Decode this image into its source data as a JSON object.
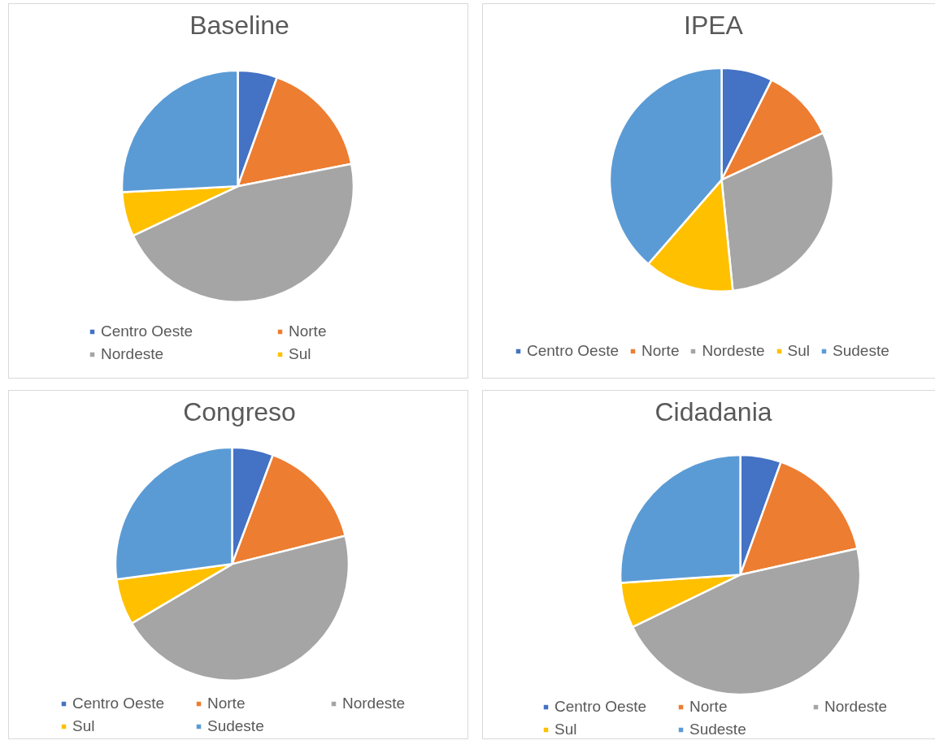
{
  "chart_data": [
    {
      "type": "pie",
      "title": "Baseline",
      "categories": [
        "Centro Oeste",
        "Norte",
        "Nordeste",
        "Sul",
        null
      ],
      "values": [
        5.5,
        16.4,
        46.1,
        6.2,
        25.8
      ],
      "colors": [
        "#4472c4",
        "#ed7d31",
        "#a5a5a5",
        "#ffc000",
        "#5b9bd5"
      ],
      "legend": "bottom"
    },
    {
      "type": "pie",
      "title": "IPEA",
      "categories": [
        "Centro Oeste",
        "Norte",
        "Nordeste",
        "Sul",
        "Sudeste"
      ],
      "values": [
        7.4,
        10.7,
        30.3,
        13.0,
        38.6
      ],
      "colors": [
        "#4472c4",
        "#ed7d31",
        "#a5a5a5",
        "#ffc000",
        "#5b9bd5"
      ],
      "legend": "bottom"
    },
    {
      "type": "pie",
      "title": "Congreso",
      "categories": [
        "Centro Oeste",
        "Norte",
        "Nordeste",
        "Sul",
        "Sudeste"
      ],
      "values": [
        5.7,
        15.4,
        45.4,
        6.4,
        27.1
      ],
      "colors": [
        "#4472c4",
        "#ed7d31",
        "#a5a5a5",
        "#ffc000",
        "#5b9bd5"
      ],
      "legend": "bottom"
    },
    {
      "type": "pie",
      "title": "Cidadania",
      "categories": [
        "Centro Oeste",
        "Norte",
        "Nordeste",
        "Sul",
        "Sudeste"
      ],
      "values": [
        5.5,
        16.0,
        46.3,
        6.1,
        26.1
      ],
      "colors": [
        "#4472c4",
        "#ed7d31",
        "#a5a5a5",
        "#ffc000",
        "#5b9bd5"
      ],
      "legend": "bottom"
    }
  ]
}
